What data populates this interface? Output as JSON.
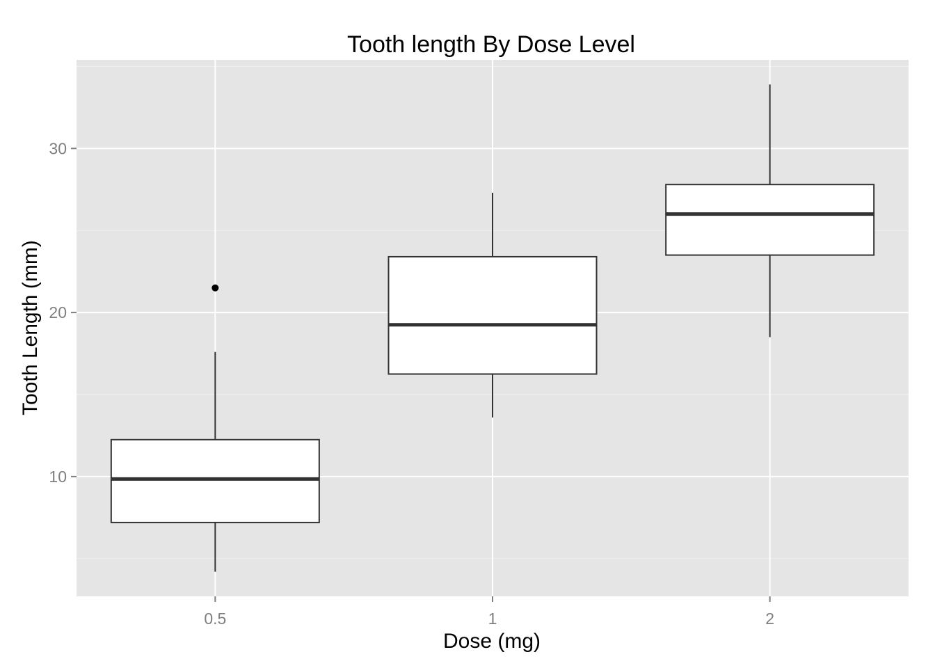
{
  "chart_data": {
    "type": "boxplot",
    "title": "Tooth length By Dose Level",
    "xlabel": "Dose (mg)",
    "ylabel": "Tooth Length (mm)",
    "categories": [
      "0.5",
      "1",
      "2"
    ],
    "boxes": [
      {
        "category": "0.5",
        "whisker_low": 4.2,
        "q1": 7.2,
        "median": 9.85,
        "q3": 12.25,
        "whisker_high": 17.6,
        "outliers": [
          21.5
        ]
      },
      {
        "category": "1",
        "whisker_low": 13.6,
        "q1": 16.25,
        "median": 19.25,
        "q3": 23.4,
        "whisker_high": 27.3,
        "outliers": []
      },
      {
        "category": "2",
        "whisker_low": 18.5,
        "q1": 23.5,
        "median": 26.0,
        "q3": 27.8,
        "whisker_high": 33.9,
        "outliers": []
      }
    ],
    "ylim": [
      2.7,
      35.4
    ],
    "yticks": [
      10,
      20,
      30
    ],
    "yminor": [
      5,
      15,
      25,
      35
    ],
    "grid": true,
    "colors": {
      "panel": "#e5e5e5",
      "grid_major": "#ffffff",
      "grid_minor": "#f2f2f2",
      "box_fill": "#ffffff",
      "box_stroke": "#333333",
      "tick": "#7f7f7f"
    }
  }
}
